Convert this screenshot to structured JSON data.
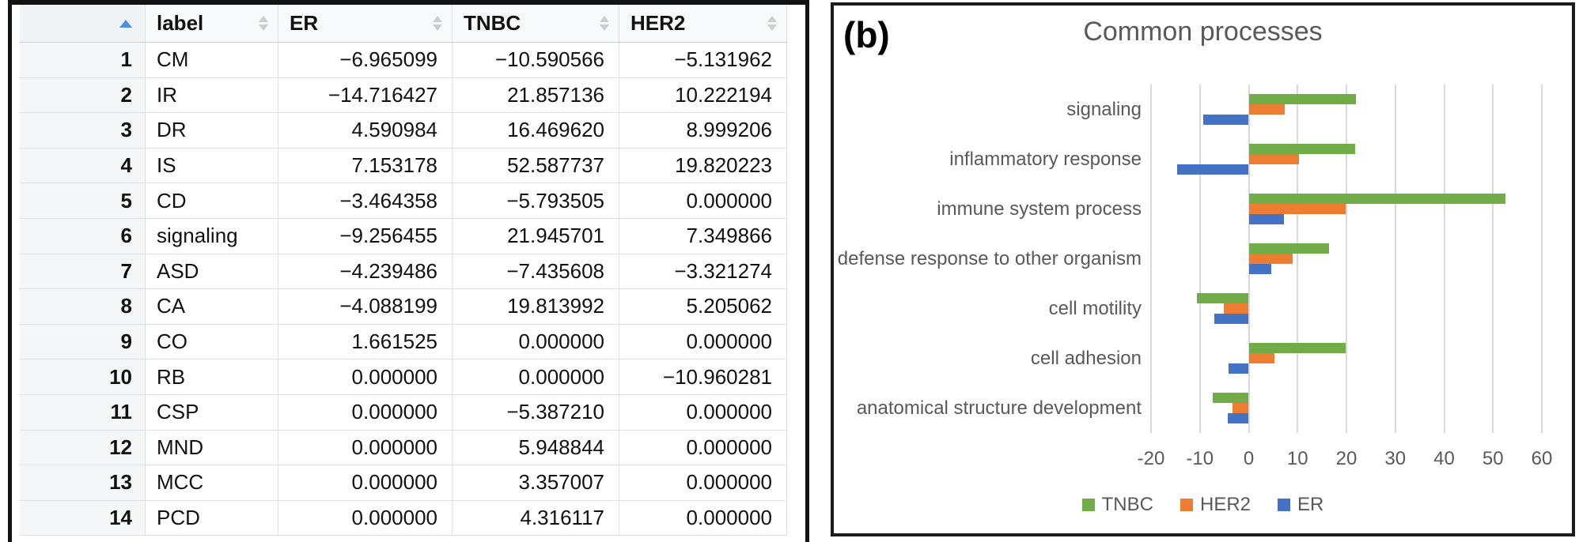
{
  "figure": {
    "panel_label": "(b)",
    "title": "Common processes"
  },
  "colors": {
    "tnbc": "#70AD47",
    "her2": "#ED7D31",
    "er": "#4472C4",
    "gridline": "#D9D9D9",
    "chart_text": "#595959",
    "sort_active": "#4A90E2",
    "sort_inactive": "#C7CED4"
  },
  "chart_data": [
    {
      "type": "table",
      "columns": [
        "",
        "label",
        "ER",
        "TNBC",
        "HER2"
      ],
      "sorted_column": 0,
      "sort_direction": "ascending",
      "rows": [
        [
          "1",
          "CM",
          "−6.965099",
          "−10.590566",
          "−5.131962"
        ],
        [
          "2",
          "IR",
          "−14.716427",
          "21.857136",
          "10.222194"
        ],
        [
          "3",
          "DR",
          "4.590984",
          "16.469620",
          "8.999206"
        ],
        [
          "4",
          "IS",
          "7.153178",
          "52.587737",
          "19.820223"
        ],
        [
          "5",
          "CD",
          "−3.464358",
          "−5.793505",
          "0.000000"
        ],
        [
          "6",
          "signaling",
          "−9.256455",
          "21.945701",
          "7.349866"
        ],
        [
          "7",
          "ASD",
          "−4.239486",
          "−7.435608",
          "−3.321274"
        ],
        [
          "8",
          "CA",
          "−4.088199",
          "19.813992",
          "5.205062"
        ],
        [
          "9",
          "CO",
          "1.661525",
          "0.000000",
          "0.000000"
        ],
        [
          "10",
          "RB",
          "0.000000",
          "0.000000",
          "−10.960281"
        ],
        [
          "11",
          "CSP",
          "0.000000",
          "−5.387210",
          "0.000000"
        ],
        [
          "12",
          "MND",
          "0.000000",
          "5.948844",
          "0.000000"
        ],
        [
          "13",
          "MCC",
          "0.000000",
          "3.357007",
          "0.000000"
        ],
        [
          "14",
          "PCD",
          "0.000000",
          "4.316117",
          "0.000000"
        ]
      ]
    },
    {
      "type": "bar",
      "orientation": "horizontal",
      "title": "Common processes",
      "categories": [
        "signaling",
        "inflammatory response",
        "immune system process",
        "defense response to other organism",
        "cell motility",
        "cell adhesion",
        "anatomical structure development"
      ],
      "series": [
        {
          "name": "TNBC",
          "color": "#70AD47",
          "values": [
            21.945701,
            21.857136,
            52.587737,
            16.46962,
            -10.590566,
            19.813992,
            -7.435608
          ]
        },
        {
          "name": "HER2",
          "color": "#ED7D31",
          "values": [
            7.349866,
            10.222194,
            19.820223,
            8.999206,
            -5.131962,
            5.205062,
            -3.321274
          ]
        },
        {
          "name": "ER",
          "color": "#4472C4",
          "values": [
            -9.256455,
            -14.716427,
            7.153178,
            4.590984,
            -6.965099,
            -4.088199,
            -4.239486
          ]
        }
      ],
      "xlim": [
        -20,
        60
      ],
      "xticks": [
        -20,
        -10,
        0,
        10,
        20,
        30,
        40,
        50,
        60
      ],
      "grid": true,
      "legend": [
        "TNBC",
        "HER2",
        "ER"
      ],
      "legend_position": "bottom"
    }
  ]
}
